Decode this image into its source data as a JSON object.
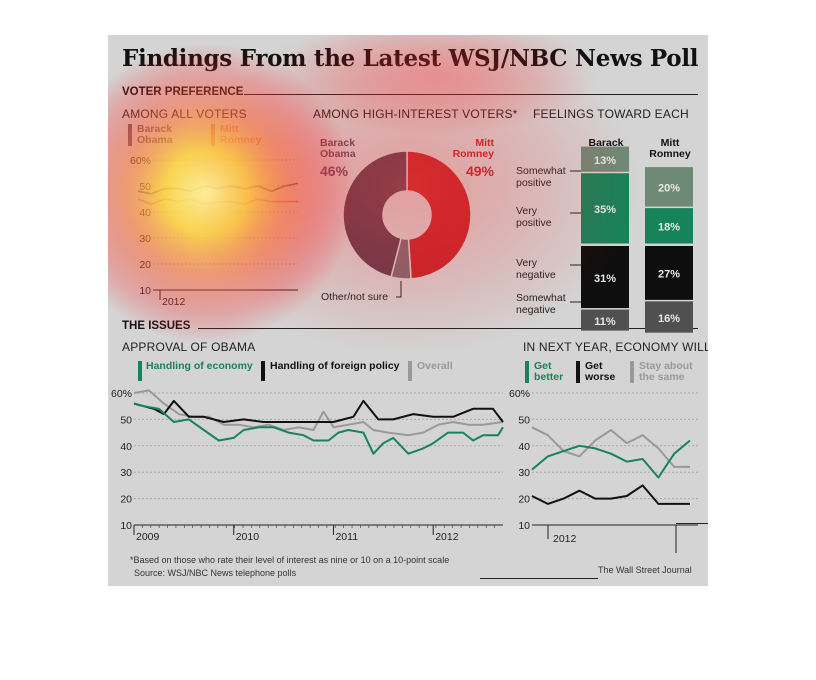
{
  "title": "Findings From the Latest WSJ/NBC News Poll",
  "voter_preference": {
    "heading": "VOTER PREFERENCE",
    "all_voters": {
      "subtitle": "AMONG ALL VOTERS",
      "legend": [
        {
          "label": "Barack Obama",
          "color": "#6b5a6e"
        },
        {
          "label": "Mitt Romney",
          "color": "#c9836d"
        }
      ],
      "y_ticks": [
        "60%",
        "50",
        "40",
        "30",
        "20",
        "10"
      ],
      "x_tick": "2012"
    },
    "high_interest": {
      "subtitle": "AMONG HIGH-INTEREST VOTERS*",
      "obama_name": "Barack Obama",
      "obama_pct": "46%",
      "romney_name": "Mitt Romney",
      "romney_pct": "49%",
      "other_label": "Other/not sure"
    },
    "feelings": {
      "subtitle": "FEELINGS TOWARD EACH",
      "col_obama": "Barack Obama",
      "col_romney": "Mitt Romney",
      "row_labels": [
        "Somewhat positive",
        "Very positive",
        "Very negative",
        "Somewhat negative"
      ],
      "obama_values": [
        "13%",
        "35%",
        "31%",
        "11%"
      ],
      "romney_values": [
        "20%",
        "18%",
        "27%",
        "16%"
      ]
    }
  },
  "issues": {
    "heading": "THE ISSUES",
    "approval": {
      "subtitle": "APPROVAL OF OBAMA",
      "legend": [
        {
          "label": "Handling of economy",
          "color": "#17835a"
        },
        {
          "label": "Handling of foreign policy",
          "color": "#111111"
        },
        {
          "label": "Overall",
          "color": "#999999"
        }
      ],
      "y_ticks": [
        "60%",
        "50",
        "40",
        "30",
        "20",
        "10"
      ],
      "x_ticks": [
        "2009",
        "2010",
        "2011",
        "2012"
      ]
    },
    "economy": {
      "subtitle": "IN NEXT YEAR, ECONOMY WILL:",
      "legend": [
        {
          "label": "Get better",
          "color": "#17835a"
        },
        {
          "label": "Get worse",
          "color": "#111111"
        },
        {
          "label": "Stay about the same",
          "color": "#999999"
        }
      ],
      "y_ticks": [
        "60%",
        "50",
        "40",
        "30",
        "20",
        "10"
      ],
      "x_tick": "2012"
    },
    "footnote": "*Based on those who rate their level of interest as nine or 10 on a 10-point scale",
    "source": "Source: WSJ/NBC News telephone polls",
    "credit": "The Wall Street Journal"
  },
  "chart_data": [
    {
      "type": "line",
      "title": "AMONG ALL VOTERS",
      "ylim": [
        10,
        60
      ],
      "series": [
        {
          "name": "Barack Obama",
          "values": [
            48,
            47,
            49,
            49,
            48,
            50,
            49,
            50,
            49,
            50,
            48,
            50,
            51
          ]
        },
        {
          "name": "Mitt Romney",
          "values": [
            45,
            43,
            45,
            44,
            45,
            43,
            44,
            44,
            43,
            45,
            44,
            44,
            44
          ]
        }
      ]
    },
    {
      "type": "pie",
      "title": "AMONG HIGH-INTEREST VOTERS*",
      "categories": [
        "Mitt Romney",
        "Other/not sure",
        "Barack Obama"
      ],
      "values": [
        49,
        5,
        46
      ],
      "colors": [
        "#c0262c",
        "#7a6a74",
        "#5e3e50"
      ]
    },
    {
      "type": "bar",
      "title": "FEELINGS TOWARD EACH",
      "categories": [
        "Somewhat positive",
        "Very positive",
        "Very negative",
        "Somewhat negative"
      ],
      "series": [
        {
          "name": "Barack Obama",
          "values": [
            13,
            35,
            31,
            11
          ]
        },
        {
          "name": "Mitt Romney",
          "values": [
            20,
            18,
            27,
            16
          ]
        }
      ]
    },
    {
      "type": "line",
      "title": "APPROVAL OF OBAMA",
      "ylim": [
        10,
        60
      ],
      "x_range": [
        2009,
        2012.7
      ],
      "series": [
        {
          "name": "Handling of economy",
          "x": [
            2009.0,
            2009.1,
            2009.25,
            2009.4,
            2009.55,
            2009.7,
            2009.85,
            2010.0,
            2010.1,
            2010.25,
            2010.4,
            2010.55,
            2010.7,
            2010.8,
            2010.95,
            2011.05,
            2011.15,
            2011.3,
            2011.4,
            2011.5,
            2011.6,
            2011.75,
            2011.9,
            2012.0,
            2012.15,
            2012.3,
            2012.4,
            2012.5,
            2012.65,
            2012.7
          ],
          "values": [
            56,
            55,
            54,
            49,
            50,
            46,
            42,
            43,
            46,
            47,
            47,
            45,
            44,
            42,
            42,
            45,
            46,
            45,
            37,
            41,
            43,
            37,
            39,
            41,
            45,
            45,
            42,
            44,
            44,
            47
          ]
        },
        {
          "name": "Handling of foreign policy",
          "x": [
            2009.0,
            2009.2,
            2009.3,
            2009.4,
            2009.55,
            2009.7,
            2009.9,
            2010.1,
            2010.3,
            2010.5,
            2010.7,
            2010.9,
            2011.0,
            2011.1,
            2011.2,
            2011.3,
            2011.45,
            2011.6,
            2011.8,
            2012.0,
            2012.2,
            2012.4,
            2012.6,
            2012.7
          ],
          "values": [
            56,
            54,
            52,
            57,
            51,
            51,
            49,
            50,
            49,
            49,
            49,
            49,
            49,
            50,
            51,
            57,
            50,
            50,
            52,
            51,
            51,
            54,
            54,
            49
          ]
        },
        {
          "name": "Overall",
          "x": [
            2009.0,
            2009.15,
            2009.3,
            2009.45,
            2009.6,
            2009.75,
            2009.9,
            2010.05,
            2010.2,
            2010.35,
            2010.5,
            2010.65,
            2010.8,
            2010.9,
            2011.0,
            2011.15,
            2011.3,
            2011.4,
            2011.55,
            2011.75,
            2011.9,
            2012.05,
            2012.2,
            2012.35,
            2012.5,
            2012.7
          ],
          "values": [
            60,
            61,
            56,
            52,
            51,
            51,
            48,
            48,
            47,
            48,
            46,
            47,
            46,
            53,
            47,
            48,
            49,
            46,
            45,
            44,
            45,
            48,
            49,
            48,
            48,
            49
          ]
        }
      ]
    },
    {
      "type": "line",
      "title": "IN NEXT YEAR, ECONOMY WILL:",
      "ylim": [
        10,
        60
      ],
      "series": [
        {
          "name": "Get better",
          "values": [
            31,
            36,
            38,
            40,
            39,
            37,
            34,
            35,
            28,
            37,
            42
          ]
        },
        {
          "name": "Get worse",
          "values": [
            21,
            18,
            20,
            23,
            20,
            20,
            21,
            25,
            18,
            18,
            18
          ]
        },
        {
          "name": "Stay about the same",
          "values": [
            47,
            44,
            38,
            36,
            42,
            46,
            41,
            44,
            39,
            32,
            32
          ]
        }
      ]
    }
  ]
}
